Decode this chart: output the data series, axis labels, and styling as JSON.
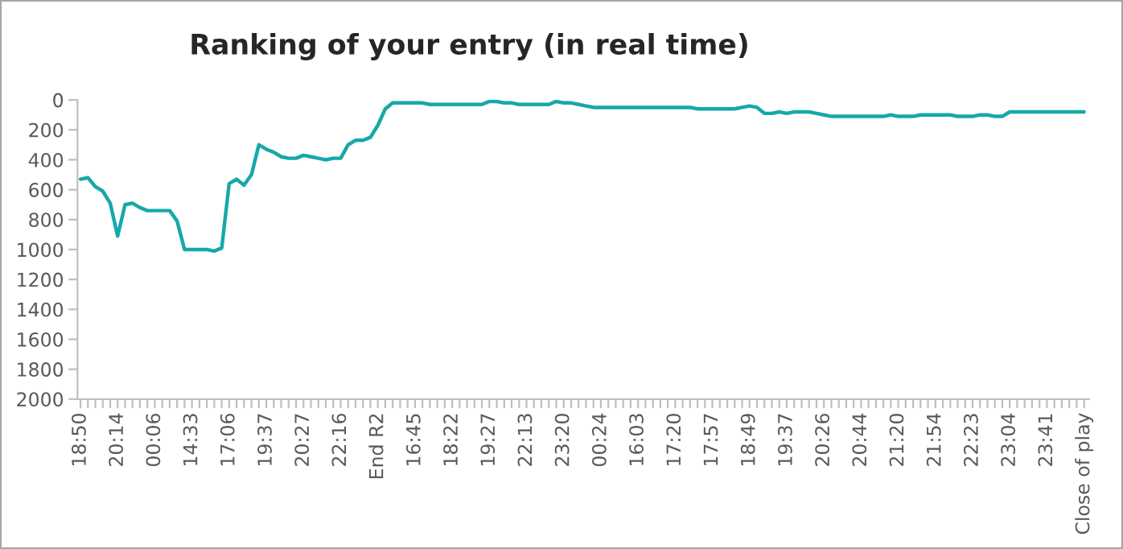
{
  "chart_data": {
    "type": "line",
    "title": "Ranking of your entry (in real time)",
    "categories": [
      "18:50",
      null,
      null,
      null,
      null,
      "20:14",
      null,
      null,
      null,
      null,
      "00:06",
      null,
      null,
      null,
      null,
      "14:33",
      null,
      null,
      null,
      null,
      "17:06",
      null,
      null,
      null,
      null,
      "19:37",
      null,
      null,
      null,
      null,
      "20:27",
      null,
      null,
      null,
      null,
      "22:16",
      null,
      null,
      null,
      null,
      "End R2",
      null,
      null,
      null,
      null,
      "16:45",
      null,
      null,
      null,
      null,
      "18:22",
      null,
      null,
      null,
      null,
      "19:27",
      null,
      null,
      null,
      null,
      "22:13",
      null,
      null,
      null,
      null,
      "23:20",
      null,
      null,
      null,
      null,
      "00:24",
      null,
      null,
      null,
      null,
      "16:03",
      null,
      null,
      null,
      null,
      "17:20",
      null,
      null,
      null,
      null,
      "17:57",
      null,
      null,
      null,
      null,
      "18:49",
      null,
      null,
      null,
      null,
      "19:37",
      null,
      null,
      null,
      null,
      "20:26",
      null,
      null,
      null,
      null,
      "20:44",
      null,
      null,
      null,
      null,
      "21:20",
      null,
      null,
      null,
      null,
      "21:54",
      null,
      null,
      null,
      null,
      "22:23",
      null,
      null,
      null,
      null,
      "23:04",
      null,
      null,
      null,
      null,
      "23:41",
      null,
      null,
      null,
      null,
      "Close of play"
    ],
    "series": [
      {
        "color": "#17a8a8",
        "values": [
          530,
          520,
          580,
          610,
          690,
          910,
          700,
          690,
          720,
          740,
          740,
          740,
          740,
          810,
          1000,
          1000,
          1000,
          1000,
          1010,
          990,
          560,
          530,
          570,
          500,
          300,
          330,
          350,
          380,
          390,
          390,
          370,
          380,
          390,
          400,
          390,
          390,
          300,
          270,
          270,
          250,
          170,
          60,
          20,
          20,
          20,
          20,
          20,
          30,
          30,
          30,
          30,
          30,
          30,
          30,
          30,
          10,
          10,
          20,
          20,
          30,
          30,
          30,
          30,
          30,
          10,
          20,
          20,
          30,
          40,
          50,
          50,
          50,
          50,
          50,
          50,
          50,
          50,
          50,
          50,
          50,
          50,
          50,
          50,
          60,
          60,
          60,
          60,
          60,
          60,
          50,
          40,
          50,
          90,
          90,
          80,
          90,
          80,
          80,
          80,
          90,
          100,
          110,
          110,
          110,
          110,
          110,
          110,
          110,
          110,
          100,
          110,
          110,
          110,
          100,
          100,
          100,
          100,
          100,
          110,
          110,
          110,
          100,
          100,
          110,
          110,
          80,
          80,
          80,
          80,
          80,
          80,
          80,
          80,
          80,
          80,
          80
        ]
      }
    ],
    "ylim": [
      2000,
      0
    ],
    "yticks": [
      0,
      200,
      400,
      600,
      800,
      1000,
      1200,
      1400,
      1600,
      1800,
      2000
    ],
    "grid": false,
    "legend": false,
    "marker": "none",
    "line_style": "solid"
  }
}
